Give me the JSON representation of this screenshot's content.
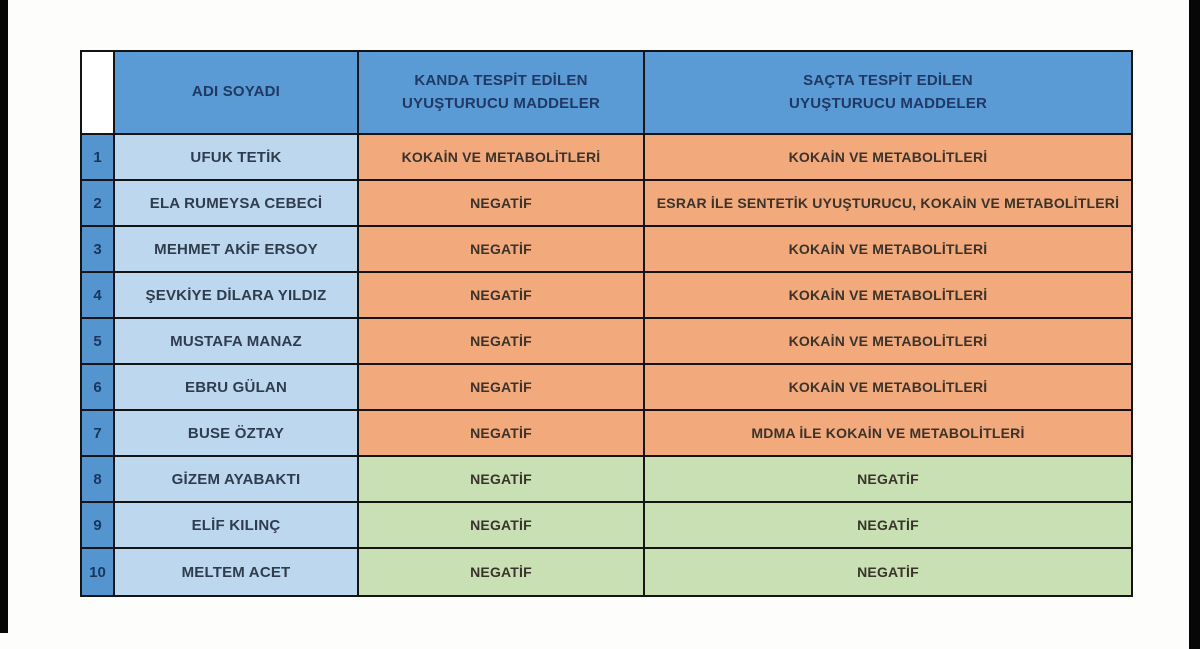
{
  "colors": {
    "header_blue": "#5b9bd5",
    "num_blue": "#5494cf",
    "name_blue": "#bdd7ee",
    "header_empty": "#ffffff",
    "orange": "#f2a97c",
    "green": "#c9e0b4",
    "frame_bar": "#070707",
    "border": "#141414",
    "header_text": "#1f3864"
  },
  "header": {
    "number_col_label": "",
    "name_col_label": "ADI SOYADI",
    "blood_col_line1": "KANDA TESPİT EDİLEN",
    "blood_col_line2": "UYUŞTURUCU MADDELER",
    "hair_col_line1": "SAÇTA TESPİT EDİLEN",
    "hair_col_line2": "UYUŞTURUCU MADDELER"
  },
  "rows": [
    {
      "num": "1",
      "name": "UFUK TETİK",
      "blood": "KOKAİN VE METABOLİTLERİ",
      "hair": "KOKAİN VE METABOLİTLERİ",
      "result_color": "orange"
    },
    {
      "num": "2",
      "name": "ELA RUMEYSA CEBECİ",
      "blood": "NEGATİF",
      "hair": "ESRAR İLE SENTETİK UYUŞTURUCU, KOKAİN VE METABOLİTLERİ",
      "result_color": "orange"
    },
    {
      "num": "3",
      "name": "MEHMET AKİF ERSOY",
      "blood": "NEGATİF",
      "hair": "KOKAİN VE METABOLİTLERİ",
      "result_color": "orange"
    },
    {
      "num": "4",
      "name": "ŞEVKİYE DİLARA YILDIZ",
      "blood": "NEGATİF",
      "hair": "KOKAİN VE METABOLİTLERİ",
      "result_color": "orange"
    },
    {
      "num": "5",
      "name": "MUSTAFA MANAZ",
      "blood": "NEGATİF",
      "hair": "KOKAİN VE METABOLİTLERİ",
      "result_color": "orange"
    },
    {
      "num": "6",
      "name": "EBRU GÜLAN",
      "blood": "NEGATİF",
      "hair": "KOKAİN VE METABOLİTLERİ",
      "result_color": "orange"
    },
    {
      "num": "7",
      "name": "BUSE ÖZTAY",
      "blood": "NEGATİF",
      "hair": "MDMA İLE KOKAİN VE METABOLİTLERİ",
      "result_color": "orange"
    },
    {
      "num": "8",
      "name": "GİZEM AYABAKTI",
      "blood": "NEGATİF",
      "hair": "NEGATİF",
      "result_color": "green"
    },
    {
      "num": "9",
      "name": "ELİF KILINÇ",
      "blood": "NEGATİF",
      "hair": "NEGATİF",
      "result_color": "green"
    },
    {
      "num": "10",
      "name": "MELTEM ACET",
      "blood": "NEGATİF",
      "hair": "NEGATİF",
      "result_color": "green"
    }
  ]
}
